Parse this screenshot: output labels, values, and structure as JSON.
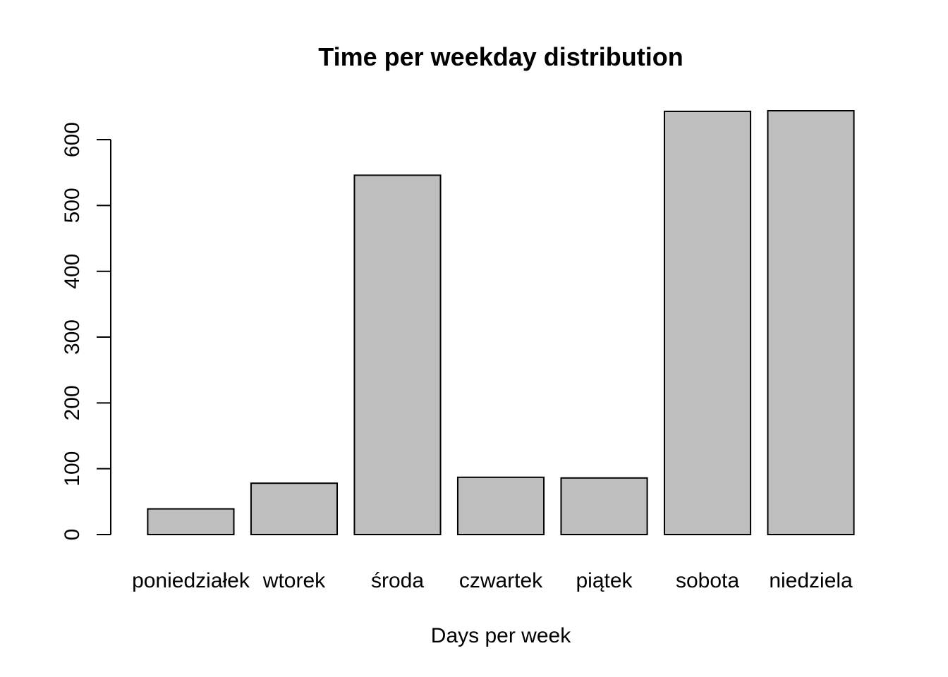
{
  "chart_data": {
    "type": "bar",
    "title": "Time per weekday distribution",
    "xlabel": "Days per week",
    "ylabel": "",
    "categories": [
      "poniedziałek",
      "wtorek",
      "środa",
      "czwartek",
      "piątek",
      "sobota",
      "niedziela"
    ],
    "values": [
      39,
      78,
      546,
      87,
      86,
      643,
      644
    ],
    "yticks": [
      0,
      100,
      200,
      300,
      400,
      500,
      600
    ],
    "ylim": [
      0,
      644
    ],
    "grid": false,
    "legend": "none",
    "colors": {
      "bar_fill": "#bebebe",
      "bar_stroke": "#000000",
      "axis": "#000000"
    }
  }
}
